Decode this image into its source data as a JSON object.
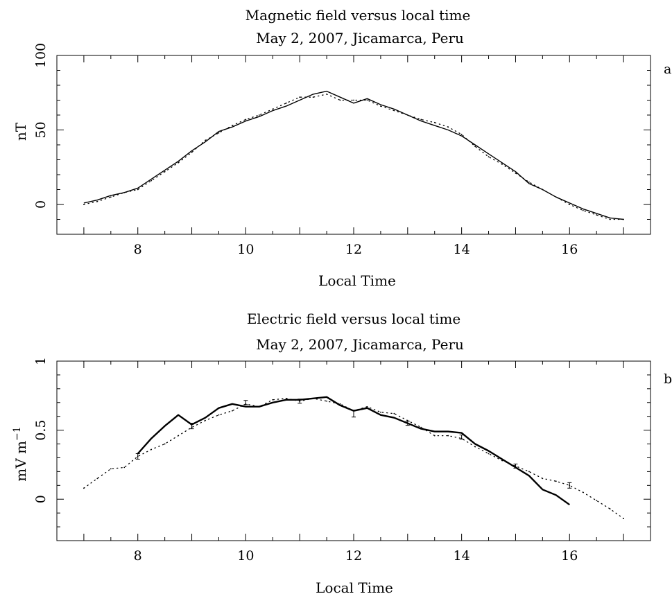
{
  "chart_data": [
    {
      "type": "line",
      "panel_label": "a",
      "title": "Magnetic field versus local time",
      "subtitle": "May 2, 2007, Jicamarca, Peru",
      "xlabel": "Local Time",
      "ylabel": "nT",
      "xlim": [
        6.5,
        17.5
      ],
      "ylim": [
        -20,
        100
      ],
      "xticks": [
        8,
        10,
        12,
        14,
        16
      ],
      "yticks": [
        0,
        50,
        100
      ],
      "series": [
        {
          "style": "solid",
          "x": [
            7.0,
            7.25,
            7.5,
            7.75,
            8.0,
            8.25,
            8.5,
            8.75,
            9.0,
            9.25,
            9.5,
            9.75,
            10.0,
            10.25,
            10.5,
            10.75,
            11.0,
            11.25,
            11.5,
            11.75,
            12.0,
            12.25,
            12.5,
            12.75,
            13.0,
            13.25,
            13.5,
            13.75,
            14.0,
            14.25,
            14.5,
            14.75,
            15.0,
            15.25,
            15.5,
            15.75,
            16.0,
            16.25,
            16.5,
            16.75,
            17.0
          ],
          "y": [
            1,
            3,
            6,
            8,
            11,
            17,
            23,
            29,
            36,
            42,
            49,
            52,
            56,
            59,
            63,
            66,
            70,
            74,
            76,
            72,
            68,
            71,
            67,
            64,
            60,
            56,
            53,
            50,
            46,
            40,
            34,
            28,
            22,
            14,
            10,
            5,
            1,
            -3,
            -6,
            -9,
            -10
          ]
        },
        {
          "style": "dotted",
          "x": [
            7.0,
            7.25,
            7.5,
            7.75,
            8.0,
            8.25,
            8.5,
            8.75,
            9.0,
            9.25,
            9.5,
            9.75,
            10.0,
            10.25,
            10.5,
            10.75,
            11.0,
            11.25,
            11.5,
            11.75,
            12.0,
            12.25,
            12.5,
            12.75,
            13.0,
            13.25,
            13.5,
            13.75,
            14.0,
            14.25,
            14.5,
            14.75,
            15.0,
            15.25,
            15.5,
            15.75,
            16.0,
            16.25,
            16.5,
            16.75,
            17.0
          ],
          "y": [
            0,
            2,
            5,
            8,
            10,
            16,
            22,
            28,
            35,
            43,
            48,
            53,
            57,
            60,
            64,
            68,
            72,
            72,
            74,
            70,
            70,
            70,
            66,
            63,
            60,
            57,
            55,
            52,
            47,
            39,
            32,
            27,
            21,
            15,
            10,
            5,
            0,
            -4,
            -7,
            -10,
            -10
          ]
        }
      ]
    },
    {
      "type": "line",
      "panel_label": "b",
      "title": "Electric field versus local time",
      "subtitle": "May 2, 2007, Jicamarca, Peru",
      "xlabel": "Local Time",
      "ylabel": "mV m",
      "ylabel_superscript": "−1",
      "xlim": [
        6.5,
        17.5
      ],
      "ylim": [
        -0.3,
        1.0
      ],
      "xticks": [
        8,
        10,
        12,
        14,
        16
      ],
      "yticks": [
        0,
        0.5,
        1
      ],
      "ytick_labels": [
        "0",
        "0.5",
        "1"
      ],
      "series": [
        {
          "style": "solid",
          "x": [
            8.0,
            8.25,
            8.5,
            8.75,
            9.0,
            9.25,
            9.5,
            9.75,
            10.0,
            10.25,
            10.5,
            10.75,
            11.0,
            11.25,
            11.5,
            11.75,
            12.0,
            12.25,
            12.5,
            12.75,
            13.0,
            13.25,
            13.5,
            13.75,
            14.0,
            14.25,
            14.5,
            14.75,
            15.0,
            15.25,
            15.5,
            15.75,
            16.0
          ],
          "y": [
            0.33,
            0.44,
            0.53,
            0.61,
            0.54,
            0.59,
            0.66,
            0.69,
            0.67,
            0.67,
            0.7,
            0.72,
            0.72,
            0.73,
            0.74,
            0.68,
            0.64,
            0.66,
            0.61,
            0.59,
            0.55,
            0.51,
            0.49,
            0.49,
            0.48,
            0.4,
            0.35,
            0.29,
            0.23,
            0.17,
            0.07,
            0.03,
            -0.04
          ]
        },
        {
          "style": "dotted",
          "x": [
            7.0,
            7.25,
            7.5,
            7.75,
            8.0,
            8.25,
            8.5,
            8.75,
            9.0,
            9.25,
            9.5,
            9.75,
            10.0,
            10.25,
            10.5,
            10.75,
            11.0,
            11.25,
            11.5,
            11.75,
            12.0,
            12.25,
            12.5,
            12.75,
            13.0,
            13.25,
            13.5,
            13.75,
            14.0,
            14.25,
            14.5,
            14.75,
            15.0,
            15.25,
            15.5,
            15.75,
            16.0,
            16.25,
            16.5,
            16.75,
            17.0
          ],
          "y": [
            0.08,
            0.15,
            0.22,
            0.23,
            0.31,
            0.36,
            0.4,
            0.46,
            0.52,
            0.57,
            0.61,
            0.64,
            0.69,
            0.67,
            0.72,
            0.73,
            0.71,
            0.73,
            0.71,
            0.69,
            0.64,
            0.67,
            0.63,
            0.62,
            0.57,
            0.52,
            0.46,
            0.46,
            0.44,
            0.38,
            0.33,
            0.28,
            0.24,
            0.2,
            0.15,
            0.13,
            0.1,
            0.05,
            -0.01,
            -0.07,
            -0.14
          ]
        }
      ],
      "error_bars": {
        "x": [
          8,
          9,
          10,
          11,
          12,
          13,
          14,
          15,
          16
        ],
        "y": [
          0.31,
          0.53,
          0.7,
          0.71,
          0.62,
          0.55,
          0.45,
          0.24,
          0.1
        ],
        "err": [
          0.02,
          0.02,
          0.015,
          0.015,
          0.025,
          0.015,
          0.015,
          0.015,
          0.02
        ]
      }
    }
  ]
}
